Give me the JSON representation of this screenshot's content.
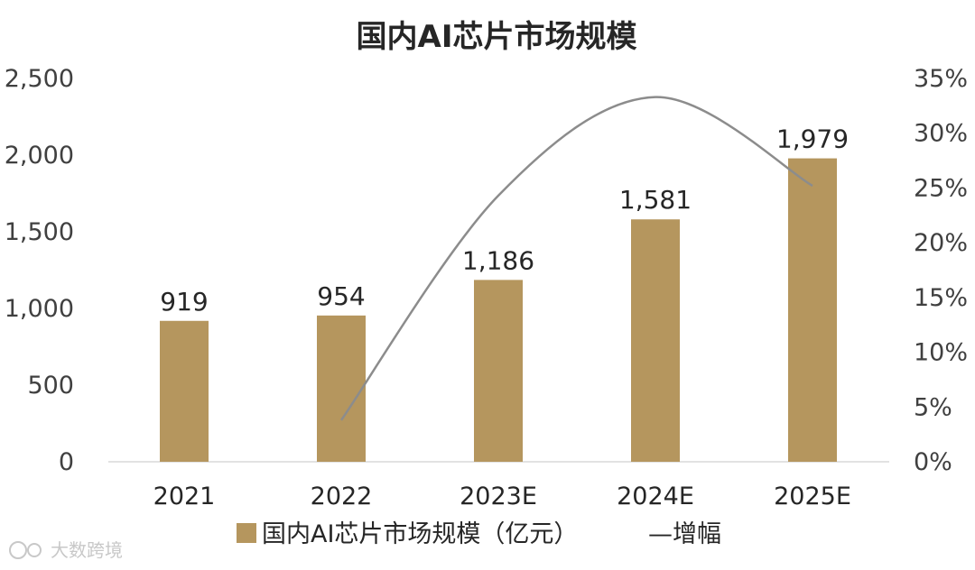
{
  "chart_data": {
    "type": "bar",
    "title": "国内AI芯片市场规模",
    "categories": [
      "2021",
      "2022",
      "2023E",
      "2024E",
      "2025E"
    ],
    "series": [
      {
        "name": "国内AI芯片市场规模（亿元）",
        "type": "bar",
        "axis": "left",
        "values": [
          919,
          954,
          1186,
          1581,
          1979
        ],
        "labels": [
          "919",
          "954",
          "1,186",
          "1,581",
          "1,979"
        ],
        "color": "#b5965e"
      },
      {
        "name": "增幅",
        "type": "line",
        "axis": "right",
        "values": [
          null,
          3.8,
          24.3,
          33.3,
          25.2
        ],
        "color": "#8c8c8c"
      }
    ],
    "y_left": {
      "min": 0,
      "max": 2500,
      "ticks": [
        "0",
        "500",
        "1,000",
        "1,500",
        "2,000",
        "2,500"
      ]
    },
    "y_right": {
      "min": 0,
      "max": 35,
      "ticks": [
        "0%",
        "5%",
        "10%",
        "15%",
        "20%",
        "25%",
        "30%",
        "35%"
      ]
    },
    "grid": false,
    "legend_position": "bottom"
  },
  "legend": {
    "bar_label": "国内AI芯片市场规模（亿元）",
    "line_label": "—增幅"
  },
  "watermark": {
    "text": "大数跨境"
  }
}
